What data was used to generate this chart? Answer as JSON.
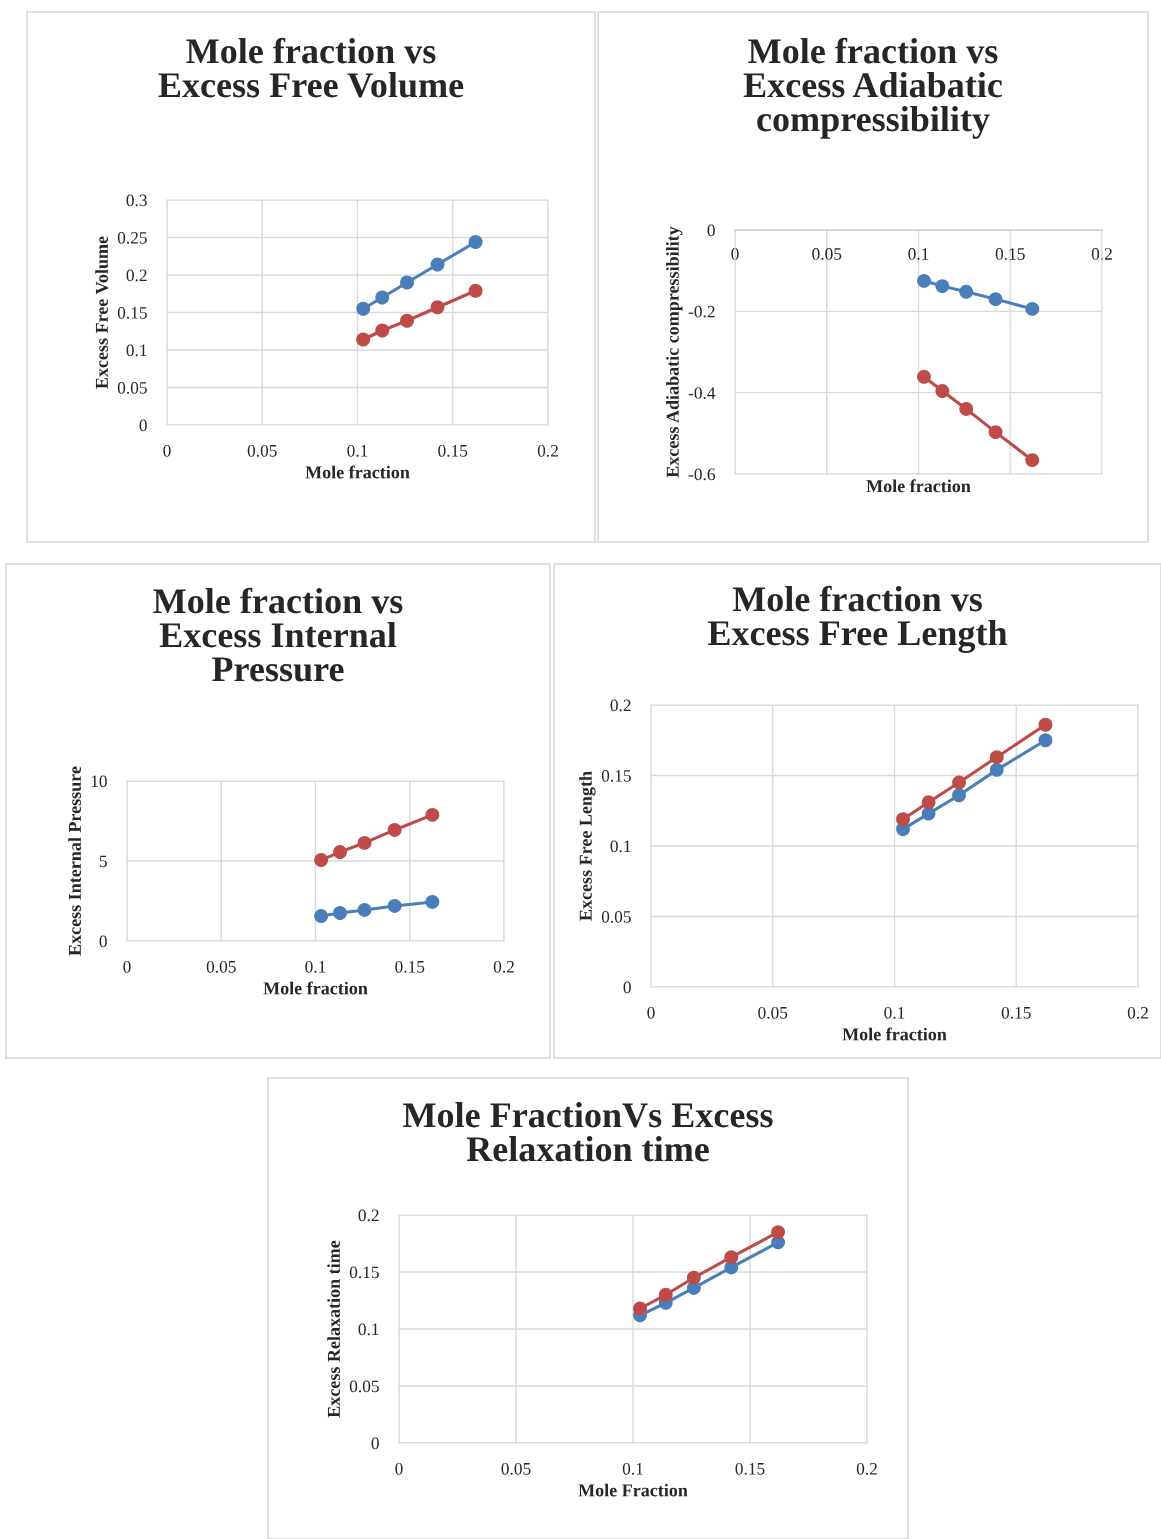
{
  "chart_data": [
    {
      "type": "line",
      "title": "Mole fraction vs\nExcess Free Volume",
      "xlabel": "Mole fraction",
      "ylabel": "Excess Free Volume",
      "x": [
        0.103,
        0.113,
        0.126,
        0.142,
        0.162
      ],
      "xlim": [
        0,
        0.2
      ],
      "xticks": [
        0,
        0.05,
        0.1,
        0.15,
        0.2
      ],
      "ylim": [
        0,
        0.3
      ],
      "yticks": [
        0,
        0.05,
        0.1,
        0.15,
        0.2,
        0.25,
        0.3
      ],
      "grid": true,
      "marker": "circle",
      "line_style": "solid",
      "legend": false,
      "series": [
        {
          "color": "#4a7ebb",
          "values": [
            0.155,
            0.17,
            0.19,
            0.214,
            0.244
          ]
        },
        {
          "color": "#be4b48",
          "values": [
            0.114,
            0.126,
            0.139,
            0.157,
            0.179
          ]
        }
      ]
    },
    {
      "type": "line",
      "title": "Mole fraction vs\nExcess Adiabatic\ncompressibility",
      "xlabel": "Mole fraction",
      "ylabel": "Excess Adiabatic compressibility",
      "x": [
        0.103,
        0.113,
        0.126,
        0.142,
        0.162
      ],
      "xlim": [
        0,
        0.2
      ],
      "xticks": [
        0,
        0.05,
        0.1,
        0.15,
        0.2
      ],
      "ylim": [
        -0.6,
        0
      ],
      "yticks": [
        {
          "value": -0.6,
          "label": "-0.6"
        },
        {
          "value": -0.4,
          "label": "-0.4"
        },
        {
          "value": -0.2,
          "label": "-0.2"
        },
        0
      ],
      "grid": true,
      "marker": "circle",
      "line_style": "solid",
      "legend": false,
      "series": [
        {
          "color": "#4a7ebb",
          "values": [
            -0.125,
            -0.138,
            -0.152,
            -0.17,
            -0.194
          ]
        },
        {
          "color": "#be4b48",
          "values": [
            -0.361,
            -0.396,
            -0.44,
            -0.497,
            -0.566
          ]
        }
      ]
    },
    {
      "type": "line",
      "title": "Mole fraction vs\nExcess Internal\nPressure",
      "xlabel": "Mole fraction",
      "ylabel": "Excess Internal Pressure",
      "x": [
        0.103,
        0.113,
        0.126,
        0.142,
        0.162
      ],
      "xlim": [
        0,
        0.2
      ],
      "xticks": [
        0,
        0.05,
        0.1,
        0.15,
        0.2
      ],
      "ylim": [
        0,
        10
      ],
      "yticks": [
        0,
        5,
        10
      ],
      "grid": true,
      "marker": "circle",
      "line_style": "solid",
      "legend": false,
      "series": [
        {
          "color": "#4a7ebb",
          "values": [
            1.56,
            1.75,
            1.94,
            2.19,
            2.44
          ]
        },
        {
          "color": "#be4b48",
          "values": [
            5.06,
            5.56,
            6.13,
            6.94,
            7.88
          ]
        }
      ]
    },
    {
      "type": "line",
      "title": "Mole fraction vs\nExcess Free Length",
      "xlabel": "Mole fraction",
      "ylabel": "Excess Free Length",
      "x": [
        0.1035,
        0.114,
        0.1265,
        0.142,
        0.162
      ],
      "xlim": [
        0,
        0.2
      ],
      "xticks": [
        0,
        0.05,
        0.1,
        0.15,
        0.2
      ],
      "ylim": [
        0,
        0.2
      ],
      "yticks": [
        0,
        0.05,
        0.1,
        0.15,
        0.2
      ],
      "grid": true,
      "marker": "circle",
      "line_style": "solid",
      "legend": false,
      "series": [
        {
          "color": "#4a7ebb",
          "values": [
            0.112,
            0.123,
            0.136,
            0.154,
            0.175
          ]
        },
        {
          "color": "#be4b48",
          "values": [
            0.119,
            0.131,
            0.145,
            0.163,
            0.186
          ]
        }
      ]
    },
    {
      "type": "line",
      "title": "Mole FractionVs Excess\nRelaxation time",
      "xlabel": "Mole Fraction",
      "ylabel": "Excess Relaxation time",
      "x": [
        0.103,
        0.114,
        0.126,
        0.142,
        0.162
      ],
      "xlim": [
        0,
        0.2
      ],
      "xticks": [
        0,
        0.05,
        0.1,
        0.15,
        0.2
      ],
      "ylim": [
        0,
        0.2
      ],
      "yticks": [
        0,
        0.05,
        0.1,
        0.15,
        0.2
      ],
      "grid": true,
      "marker": "circle",
      "line_style": "solid",
      "legend": false,
      "series": [
        {
          "color": "#4a7ebb",
          "values": [
            0.112,
            0.123,
            0.136,
            0.154,
            0.176
          ]
        },
        {
          "color": "#be4b48",
          "values": [
            0.118,
            0.13,
            0.145,
            0.163,
            0.185
          ]
        }
      ]
    }
  ]
}
